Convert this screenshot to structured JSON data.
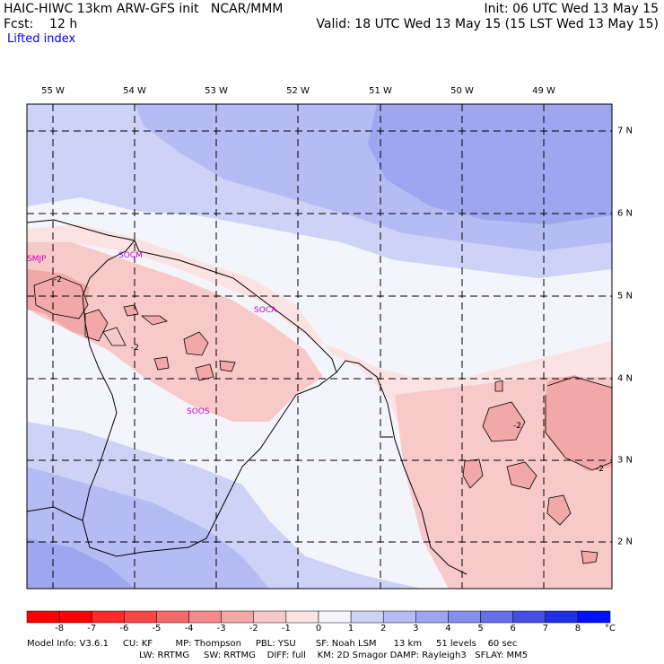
{
  "header": {
    "line1_left": "HAIC-HIWC 13km ARW-GFS init   NCAR/MMM",
    "line1_right": "Init: 06 UTC Wed 13 May 15",
    "line2_left": "Fcst:    12 h",
    "line2_right": "Valid: 18 UTC Wed 13 May 15 (15 LST Wed 13 May 15)",
    "field": "Lifted index"
  },
  "map": {
    "lon_labels": [
      "55 W",
      "54 W",
      "53 W",
      "52 W",
      "51 W",
      "50 W",
      "49 W"
    ],
    "lat_labels": [
      "7 N",
      "6 N",
      "5 N",
      "4 N",
      "3 N",
      "2 N"
    ],
    "stations": [
      "SMJP",
      "SOCM",
      "SOCA",
      "SOOS"
    ],
    "contour_labels": [
      "-2",
      "-2",
      "-2",
      "-2"
    ],
    "fill_colors": {
      "blue_dark": "#9da6ef",
      "blue_mid": "#b4bcf3",
      "blue_light": "#cdd2f7",
      "neutral": "#f4f4fb",
      "pink_light": "#fbe3e3",
      "pink_mid": "#f8c9c9",
      "pink_dark": "#f2a8a8"
    }
  },
  "colorbar": {
    "ticks": [
      "-8",
      "-7",
      "-6",
      "-5",
      "-4",
      "-3",
      "-2",
      "-1",
      "0",
      "1",
      "2",
      "3",
      "4",
      "5",
      "6",
      "7",
      "8"
    ],
    "unit": "°C",
    "colors": [
      "#ff0000",
      "#ff2a2a",
      "#fb4646",
      "#f86a6a",
      "#f58a8a",
      "#f2a8a8",
      "#f8c9c9",
      "#fbe3e3",
      "#f4f4fb",
      "#cdd2f7",
      "#b4bcf3",
      "#9da6ef",
      "#8590eb",
      "#6570e8",
      "#4450e5",
      "#2030e6",
      "#0010ff"
    ]
  },
  "footer": {
    "line1": "Model Info: V3.6.1     CU: KF        MP: Thompson     PBL: YSU       SF: Noah LSM      13 km     51 levels    60 sec",
    "line2": "LW: RRTMG     SW: RRTMG    DIFF: full    KM: 2D Smagor DAMP: Rayleigh3   SFLAY: MM5"
  }
}
